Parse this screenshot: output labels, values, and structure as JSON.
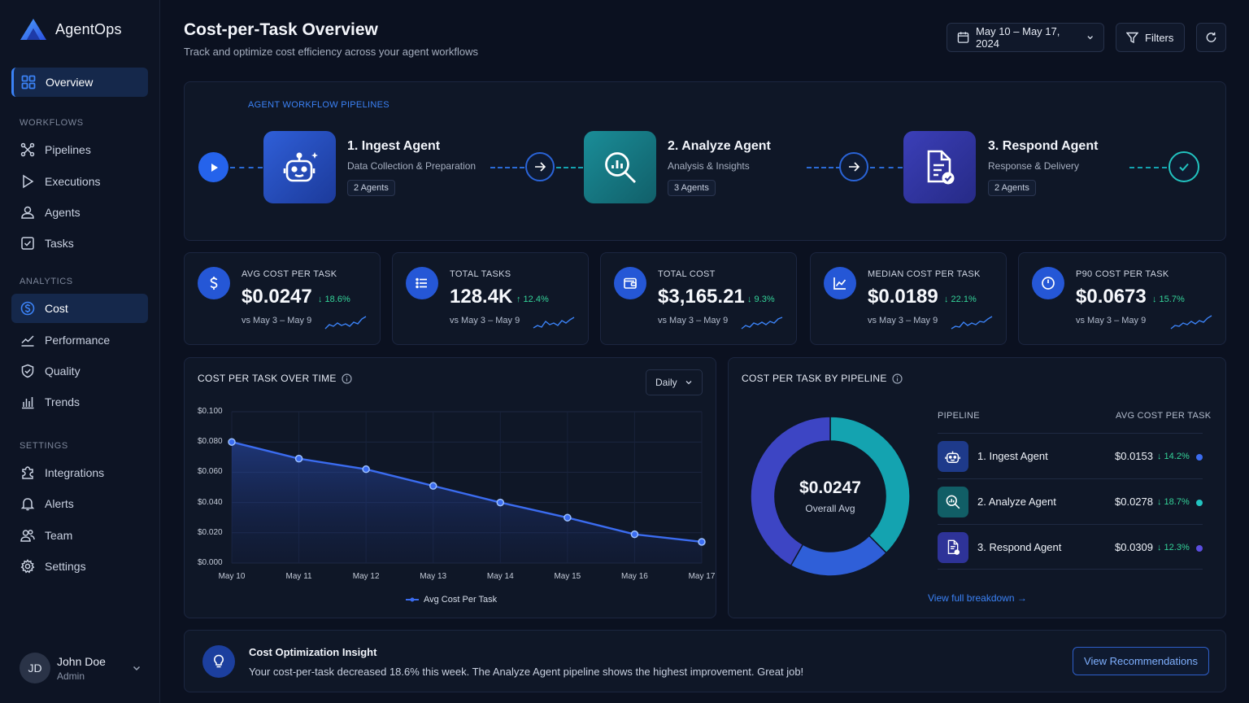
{
  "app": {
    "name": "AgentOps"
  },
  "sidebar": {
    "overview": "Overview",
    "sections": {
      "workflows": "WORKFLOWS",
      "analytics": "ANALYTICS",
      "settings": "SETTINGS"
    },
    "workflows": [
      "Pipelines",
      "Executions",
      "Agents",
      "Tasks"
    ],
    "analytics": [
      "Cost",
      "Performance",
      "Quality",
      "Trends"
    ],
    "settings": [
      "Integrations",
      "Alerts",
      "Team",
      "Settings"
    ],
    "active_item": "Cost"
  },
  "user": {
    "initials": "JD",
    "name": "John Doe",
    "role": "Admin"
  },
  "header": {
    "title": "Cost-per-Task Overview",
    "subtitle": "Track and optimize cost efficiency across your agent workflows",
    "date_range": "May 10 – May 17, 2024",
    "filters_label": "Filters"
  },
  "pipeline": {
    "label": "AGENT WORKFLOW PIPELINES",
    "stages": [
      {
        "name": "1. Ingest Agent",
        "desc": "Data Collection & Preparation",
        "badge": "2 Agents",
        "icon": "robot-icon"
      },
      {
        "name": "2. Analyze Agent",
        "desc": "Analysis & Insights",
        "badge": "3 Agents",
        "icon": "magnifier-chart-icon"
      },
      {
        "name": "3. Respond Agent",
        "desc": "Response & Delivery",
        "badge": "2 Agents",
        "icon": "document-check-icon"
      }
    ]
  },
  "kpis": [
    {
      "label": "AVG COST PER TASK",
      "value": "$0.0247",
      "delta": "↓ 18.6%",
      "compare": "vs May 3 – May 9",
      "icon": "dollar-icon"
    },
    {
      "label": "TOTAL TASKS",
      "value": "128.4K",
      "delta": "↑ 12.4%",
      "compare": "vs May 3 – May 9",
      "icon": "list-icon"
    },
    {
      "label": "TOTAL COST",
      "value": "$3,165.21",
      "delta": "↓ 9.3%",
      "compare": "vs May 3 – May 9",
      "icon": "wallet-icon"
    },
    {
      "label": "MEDIAN COST PER TASK",
      "value": "$0.0189",
      "delta": "↓ 22.1%",
      "compare": "vs May 3 – May 9",
      "icon": "line-chart-icon"
    },
    {
      "label": "P90 COST PER TASK",
      "value": "$0.0673",
      "delta": "↓ 15.7%",
      "compare": "vs May 3 – May 9",
      "icon": "clock-icon"
    }
  ],
  "time_chart": {
    "title": "COST PER TASK OVER TIME",
    "granularity": "Daily"
  },
  "chart_data": [
    {
      "type": "area",
      "title": "COST PER TASK OVER TIME",
      "categories": [
        "May 10",
        "May 11",
        "May 12",
        "May 13",
        "May 14",
        "May 15",
        "May 16",
        "May 17"
      ],
      "series": [
        {
          "name": "Avg Cost Per Task",
          "values": [
            0.08,
            0.069,
            0.062,
            0.051,
            0.04,
            0.03,
            0.019,
            0.014
          ]
        }
      ],
      "yticks": [
        "$0.000",
        "$0.020",
        "$0.040",
        "$0.060",
        "$0.080",
        "$0.100"
      ],
      "ylim": [
        0,
        0.1
      ],
      "grid": true,
      "legend": "bottom-center",
      "color": "#3b82f6"
    },
    {
      "type": "pie",
      "title": "COST PER TASK BY PIPELINE",
      "center_value": "$0.0247",
      "center_label": "Overall Avg",
      "slices": [
        {
          "label": "1. Ingest Agent",
          "value": 0.0153,
          "color": "#2f5fd8"
        },
        {
          "label": "2. Analyze Agent",
          "value": 0.0278,
          "color": "#14a3b0"
        },
        {
          "label": "3. Respond Agent",
          "value": 0.0309,
          "color": "#3d45c4"
        }
      ]
    }
  ],
  "pipeline_table": {
    "title": "COST PER TASK BY PIPELINE",
    "col_pipeline": "PIPELINE",
    "col_cost": "AVG COST PER TASK",
    "rows": [
      {
        "name": "1. Ingest Agent",
        "value": "$0.0153",
        "delta": "↓ 14.2%",
        "color": "#3b6cf0"
      },
      {
        "name": "2. Analyze Agent",
        "value": "$0.0278",
        "delta": "↓ 18.7%",
        "color": "#22c3c0"
      },
      {
        "name": "3. Respond Agent",
        "value": "$0.0309",
        "delta": "↓ 12.3%",
        "color": "#5b4ee0"
      }
    ],
    "link": "View full breakdown →"
  },
  "insight": {
    "title": "Cost Optimization Insight",
    "text": "Your cost-per-task decreased 18.6% this week. The Analyze Agent pipeline shows the highest improvement. Great job!",
    "button": "View Recommendations"
  }
}
